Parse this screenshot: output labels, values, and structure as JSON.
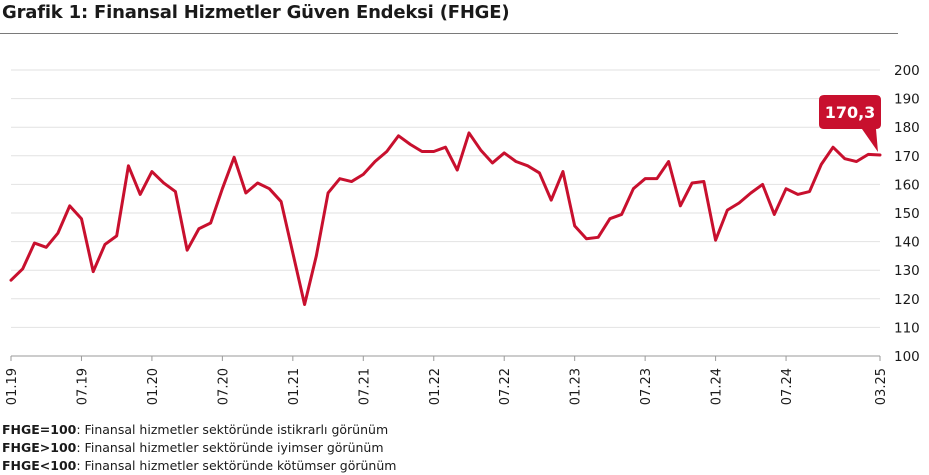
{
  "title": "Grafik 1: Finansal Hizmetler Güven Endeksi (FHGE)",
  "chart_data": {
    "type": "line",
    "title": "Grafik 1: Finansal Hizmetler Güven Endeksi (FHGE)",
    "xlabel": "",
    "ylabel": "",
    "ylim": [
      100,
      200
    ],
    "yticks": [
      100,
      110,
      120,
      130,
      140,
      150,
      160,
      170,
      180,
      190,
      200
    ],
    "grid": true,
    "x_tick_labels": [
      "01.19",
      "07.19",
      "01.20",
      "07.20",
      "01.21",
      "07.21",
      "01.22",
      "07.22",
      "01.23",
      "07.23",
      "01.24",
      "07.24",
      "03.25"
    ],
    "x_tick_months": [
      0,
      6,
      12,
      18,
      24,
      30,
      36,
      42,
      48,
      54,
      60,
      66,
      74
    ],
    "series": [
      {
        "name": "",
        "color": "#c8102e",
        "values": [
          126.5,
          130.5,
          139.5,
          138,
          143,
          152.5,
          148,
          129.5,
          139,
          142,
          166.5,
          156.5,
          164.5,
          160.5,
          157.5,
          137,
          144.5,
          146.5,
          158.5,
          169.5,
          157,
          160.5,
          158.5,
          154,
          136,
          118,
          135,
          157,
          162,
          161,
          163.5,
          168,
          171.5,
          177,
          174,
          171.5,
          171.5,
          173,
          165,
          178,
          172,
          167.5,
          171,
          168,
          166.5,
          164,
          154.5,
          164.5,
          145.5,
          141,
          141.5,
          148,
          149.5,
          158.5,
          162,
          162,
          168,
          152.5,
          160.5,
          161,
          140.5,
          151,
          153.5,
          157,
          160,
          149.5,
          158.5,
          156.5,
          157.5,
          167,
          173,
          169,
          168,
          170.5,
          170.3
        ]
      }
    ],
    "annotation": {
      "label": "170,3",
      "value": 170.3,
      "month": 74,
      "color": "#c8102e"
    }
  },
  "legend": [
    {
      "key": "FHGE=100",
      "text": ": Finansal hizmetler sektöründe istikrarlı görünüm"
    },
    {
      "key": "FHGE>100",
      "text": ": Finansal hizmetler sektöründe iyimser görünüm"
    },
    {
      "key": "FHGE<100",
      "text": ": Finansal hizmetler sektöründe kötümser görünüm"
    }
  ]
}
